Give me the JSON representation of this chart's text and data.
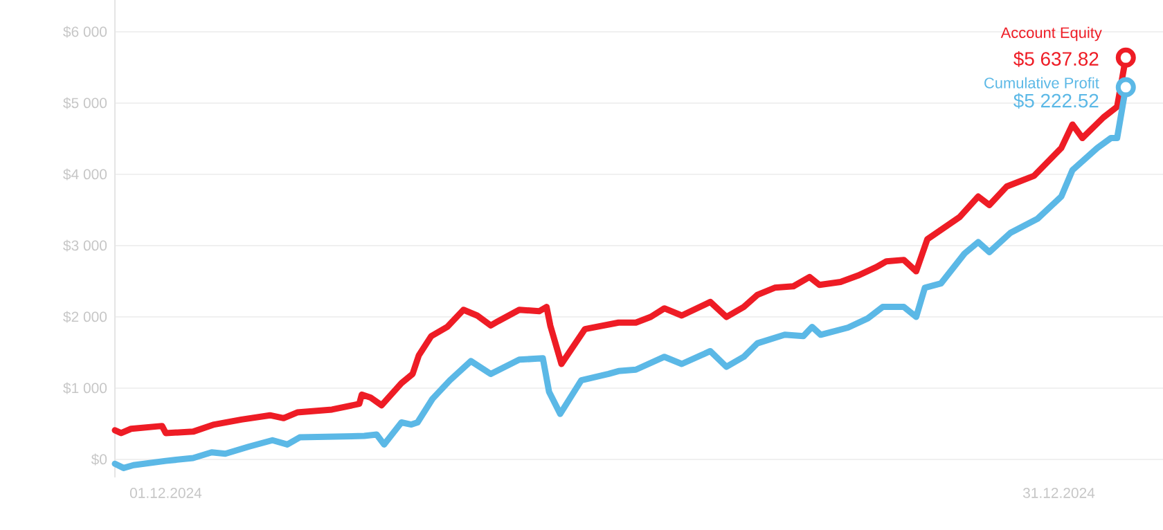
{
  "chart_data": {
    "type": "line",
    "series": [
      {
        "name": "Account Equity",
        "color": "#ee1c25",
        "x": [
          "2024-11-29T07:00",
          "2024-11-29T12:00",
          "2024-11-29T20:00",
          "2024-11-30T21:00",
          "2024-12-01T00:00",
          "2024-12-01T22:00",
          "2024-12-02T15:00",
          "2024-12-03T13:00",
          "2024-12-04T12:00",
          "2024-12-04T23:00",
          "2024-12-05T10:00",
          "2024-12-06T14:00",
          "2024-12-07T12:00",
          "2024-12-07T14:00",
          "2024-12-07T21:00",
          "2024-12-08T06:00",
          "2024-12-08T22:00",
          "2024-12-09T07:00",
          "2024-12-09T12:00",
          "2024-12-09T22:00",
          "2024-12-10T11:00",
          "2024-12-11T00:00",
          "2024-12-11T11:00",
          "2024-12-11T22:00",
          "2024-12-12T04:00",
          "2024-12-12T21:00",
          "2024-12-13T13:00",
          "2024-12-13T19:00",
          "2024-12-13T22:00",
          "2024-12-14T07:00",
          "2024-12-15T02:00",
          "2024-12-16T05:00",
          "2024-12-16T19:00",
          "2024-12-17T07:00",
          "2024-12-17T18:00",
          "2024-12-18T08:00",
          "2024-12-19T07:00",
          "2024-12-19T20:00",
          "2024-12-20T10:00",
          "2024-12-20T21:00",
          "2024-12-21T11:00",
          "2024-12-22T02:00",
          "2024-12-22T15:00",
          "2024-12-22T23:00",
          "2024-12-23T16:00",
          "2024-12-24T06:00",
          "2024-12-24T21:00",
          "2024-12-25T05:00",
          "2024-12-25T19:00",
          "2024-12-26T05:00",
          "2024-12-26T14:00",
          "2024-12-27T16:00",
          "2024-12-28T07:00",
          "2024-12-28T16:00",
          "2024-12-29T06:00",
          "2024-12-30T04:00",
          "2024-12-31T02:00",
          "2024-12-31T11:00",
          "2024-12-31T19:00",
          "2025-01-01T12:00",
          "2025-01-01T23:00",
          "2025-01-02T06:00"
        ],
        "values": [
          410,
          370,
          430,
          470,
          370,
          390,
          490,
          560,
          620,
          580,
          660,
          700,
          780,
          910,
          870,
          760,
          1070,
          1200,
          1460,
          1730,
          1860,
          2100,
          2020,
          1880,
          1940,
          2100,
          2080,
          2140,
          1880,
          1340,
          1830,
          1920,
          1920,
          2000,
          2120,
          2020,
          2210,
          2000,
          2140,
          2310,
          2410,
          2430,
          2560,
          2450,
          2490,
          2580,
          2700,
          2780,
          2800,
          2640,
          3090,
          3400,
          3690,
          3570,
          3830,
          3980,
          4370,
          4700,
          4510,
          4800,
          4950,
          5637.82
        ]
      },
      {
        "name": "Cumulative Profit",
        "color": "#5bb8e6",
        "x": [
          "2024-11-29T07:00",
          "2024-11-29T14:00",
          "2024-11-29T22:00",
          "2024-12-01T00:00",
          "2024-12-01T22:00",
          "2024-12-02T13:00",
          "2024-12-03T00:00",
          "2024-12-03T19:00",
          "2024-12-04T14:00",
          "2024-12-05T02:00",
          "2024-12-05T12:00",
          "2024-12-07T16:00",
          "2024-12-08T02:00",
          "2024-12-08T08:00",
          "2024-12-08T22:00",
          "2024-12-09T06:00",
          "2024-12-09T11:00",
          "2024-12-09T23:00",
          "2024-12-10T13:00",
          "2024-12-11T06:00",
          "2024-12-11T22:00",
          "2024-12-12T21:00",
          "2024-12-13T16:00",
          "2024-12-13T21:00",
          "2024-12-14T06:00",
          "2024-12-14T23:00",
          "2024-12-15T21:00",
          "2024-12-16T05:00",
          "2024-12-16T19:00",
          "2024-12-17T18:00",
          "2024-12-18T08:00",
          "2024-12-19T07:00",
          "2024-12-19T20:00",
          "2024-12-20T10:00",
          "2024-12-20T21:00",
          "2024-12-21T19:00",
          "2024-12-22T10:00",
          "2024-12-22T17:00",
          "2024-12-23T00:00",
          "2024-12-23T22:00",
          "2024-12-24T14:00",
          "2024-12-25T02:00",
          "2024-12-25T19:00",
          "2024-12-26T05:00",
          "2024-12-26T12:00",
          "2024-12-27T01:00",
          "2024-12-27T20:00",
          "2024-12-28T07:00",
          "2024-12-28T16:00",
          "2024-12-29T09:00",
          "2024-12-30T07:00",
          "2024-12-31T02:00",
          "2024-12-31T11:00",
          "2025-01-01T07:00",
          "2025-01-01T18:00",
          "2025-01-01T23:00",
          "2025-01-02T06:00"
        ],
        "values": [
          -60,
          -120,
          -80,
          -20,
          20,
          100,
          80,
          180,
          270,
          210,
          310,
          330,
          350,
          210,
          520,
          490,
          520,
          850,
          1110,
          1380,
          1200,
          1400,
          1420,
          950,
          640,
          1110,
          1200,
          1240,
          1260,
          1440,
          1340,
          1520,
          1300,
          1440,
          1630,
          1750,
          1730,
          1860,
          1750,
          1850,
          1980,
          2140,
          2140,
          2000,
          2410,
          2470,
          2890,
          3050,
          2910,
          3180,
          3380,
          3690,
          4060,
          4370,
          4510,
          4510,
          5222.52
        ]
      }
    ],
    "annotations": [
      {
        "text": "$5 637.82",
        "x": "2025-01-02T06:00",
        "y": 5637.82
      },
      {
        "text": "$5 222.52",
        "x": "2025-01-02T06:00",
        "y": 5222.52
      }
    ],
    "xlim": [
      "2024-11-29T07:00",
      "2025-01-03T12:00"
    ],
    "xticks": [
      {
        "value": "2024-12-01",
        "label": "01.12.2024"
      },
      {
        "value": "2024-12-31",
        "label": "31.12.2024"
      }
    ],
    "ylim": [
      -252,
      6447
    ],
    "yticks": [
      {
        "value": 0,
        "label": "$0"
      },
      {
        "value": 1000,
        "label": "$1 000"
      },
      {
        "value": 2000,
        "label": "$2 000"
      },
      {
        "value": 3000,
        "label": "$3 000"
      },
      {
        "value": 4000,
        "label": "$4 000"
      },
      {
        "value": 5000,
        "label": "$5 000"
      },
      {
        "value": 6000,
        "label": "$6 000"
      }
    ],
    "grid": "y",
    "legend": false,
    "marker": "none",
    "line_style": "solid"
  }
}
